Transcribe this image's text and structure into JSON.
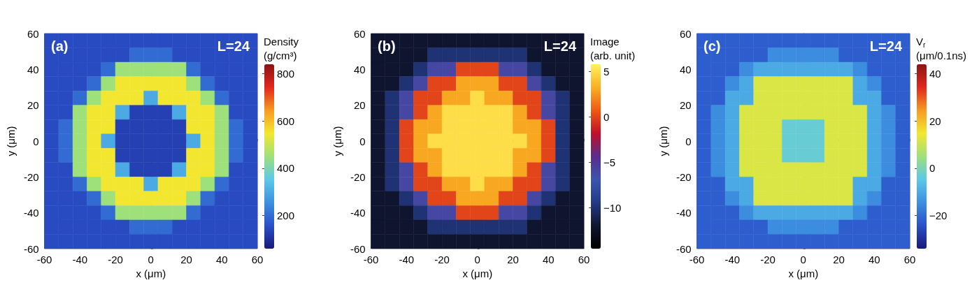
{
  "chart_data": [
    {
      "type": "heatmap",
      "xlabel": "x (μm)",
      "ylabel": "y (μm)",
      "clabel": "Density (g/cm³)",
      "annotations": [
        "(a)",
        "L=24"
      ],
      "x": [
        -56,
        -48,
        -40,
        -32,
        -24,
        -16,
        -8,
        0,
        8,
        16,
        24,
        32,
        40,
        48,
        56
      ],
      "y": [
        56,
        48,
        40,
        32,
        24,
        16,
        8,
        0,
        -8,
        -16,
        -24,
        -32,
        -40,
        -48,
        -56
      ],
      "xlim": [
        -60,
        60
      ],
      "xticks": [
        -60,
        -40,
        -20,
        0,
        20,
        40,
        60
      ],
      "ylim": [
        -60,
        60
      ],
      "yticks": [
        -60,
        -40,
        -20,
        0,
        20,
        40,
        60
      ],
      "clim": [
        60,
        840
      ],
      "cticks": [
        200,
        400,
        600,
        800
      ],
      "colors": [
        "#1a1a7a",
        "#2a4fc8",
        "#3d8fe0",
        "#5cc8e8",
        "#9ee07a",
        "#f2e830",
        "#f79a22",
        "#e0281e",
        "#8a1414"
      ],
      "cells": [
        [
          150,
          150,
          150,
          150,
          150,
          150,
          150,
          150,
          150,
          150,
          150,
          150,
          150,
          150,
          150
        ],
        [
          150,
          150,
          150,
          150,
          150,
          150,
          200,
          200,
          200,
          150,
          150,
          150,
          150,
          150,
          150
        ],
        [
          150,
          150,
          150,
          150,
          200,
          450,
          450,
          450,
          450,
          450,
          200,
          150,
          150,
          150,
          150
        ],
        [
          150,
          150,
          150,
          200,
          450,
          550,
          550,
          550,
          550,
          550,
          450,
          200,
          150,
          150,
          150
        ],
        [
          150,
          150,
          200,
          450,
          550,
          550,
          550,
          300,
          550,
          550,
          550,
          450,
          200,
          150,
          150
        ],
        [
          150,
          150,
          450,
          550,
          550,
          300,
          130,
          130,
          130,
          300,
          550,
          550,
          450,
          150,
          150
        ],
        [
          150,
          200,
          450,
          550,
          550,
          130,
          130,
          130,
          130,
          130,
          550,
          550,
          450,
          200,
          150
        ],
        [
          150,
          200,
          450,
          550,
          300,
          130,
          130,
          130,
          130,
          130,
          300,
          550,
          450,
          200,
          150
        ],
        [
          150,
          200,
          450,
          550,
          550,
          130,
          130,
          130,
          130,
          130,
          550,
          550,
          450,
          200,
          150
        ],
        [
          150,
          150,
          450,
          550,
          550,
          300,
          130,
          130,
          130,
          300,
          550,
          550,
          450,
          150,
          150
        ],
        [
          150,
          150,
          200,
          450,
          550,
          550,
          550,
          300,
          550,
          550,
          550,
          450,
          200,
          150,
          150
        ],
        [
          150,
          150,
          150,
          200,
          450,
          550,
          550,
          550,
          550,
          550,
          450,
          200,
          150,
          150,
          150
        ],
        [
          150,
          150,
          150,
          150,
          200,
          450,
          450,
          450,
          450,
          450,
          200,
          150,
          150,
          150,
          150
        ],
        [
          150,
          150,
          150,
          150,
          150,
          150,
          200,
          200,
          200,
          150,
          150,
          150,
          150,
          150,
          150
        ],
        [
          150,
          150,
          150,
          150,
          150,
          150,
          150,
          150,
          150,
          150,
          150,
          150,
          150,
          150,
          150
        ]
      ]
    },
    {
      "type": "heatmap",
      "xlabel": "x (μm)",
      "ylabel": "y (μm)",
      "clabel": "Image (arb. unit)",
      "annotations": [
        "(b)",
        "L=24"
      ],
      "x": [
        -56,
        -48,
        -40,
        -32,
        -24,
        -16,
        -8,
        0,
        8,
        16,
        24,
        32,
        40,
        48,
        56
      ],
      "y": [
        56,
        48,
        40,
        32,
        24,
        16,
        8,
        0,
        -8,
        -16,
        -24,
        -32,
        -40,
        -48,
        -56
      ],
      "xlim": [
        -60,
        60
      ],
      "xticks": [
        -60,
        -40,
        -20,
        0,
        20,
        40,
        60
      ],
      "ylim": [
        -60,
        60
      ],
      "yticks": [
        -60,
        -40,
        -20,
        0,
        20,
        40,
        60
      ],
      "clim": [
        -14.5,
        5.8
      ],
      "cticks": [
        {
          "value": 5,
          "label": "5"
        },
        0,
        {
          "value": -5,
          "label": "−5"
        },
        {
          "value": -10,
          "label": "−10"
        }
      ],
      "colors": [
        "#000000",
        "#101530",
        "#243a86",
        "#3b55b0",
        "#5a2c8c",
        "#c0102a",
        "#ee5a12",
        "#f9b022",
        "#fff25a"
      ],
      "cells": [
        [
          -12,
          -12,
          -12,
          -12,
          -12,
          -12,
          -12,
          -12,
          -12,
          -12,
          -12,
          -12,
          -12,
          -12,
          -12
        ],
        [
          -12,
          -12,
          -12,
          -12,
          -10,
          -10,
          -10,
          -10,
          -10,
          -10,
          -10,
          -12,
          -12,
          -12,
          -12
        ],
        [
          -12,
          -12,
          -12,
          -10,
          -6,
          -6,
          0,
          0,
          0,
          -6,
          -6,
          -10,
          -12,
          -12,
          -12
        ],
        [
          -12,
          -12,
          -10,
          -6,
          0,
          0,
          3,
          3,
          3,
          0,
          0,
          -6,
          -10,
          -12,
          -12
        ],
        [
          -12,
          -10,
          -6,
          0,
          0,
          3,
          3,
          5,
          3,
          3,
          0,
          0,
          -6,
          -10,
          -12
        ],
        [
          -12,
          -10,
          -6,
          0,
          3,
          5,
          5,
          5,
          5,
          5,
          3,
          0,
          -6,
          -10,
          -12
        ],
        [
          -12,
          -10,
          0,
          3,
          3,
          5,
          5,
          5,
          5,
          5,
          3,
          3,
          0,
          -10,
          -12
        ],
        [
          -12,
          -10,
          0,
          3,
          5,
          5,
          5,
          5,
          5,
          5,
          5,
          3,
          0,
          -10,
          -12
        ],
        [
          -12,
          -10,
          0,
          3,
          3,
          5,
          5,
          5,
          5,
          5,
          3,
          3,
          0,
          -10,
          -12
        ],
        [
          -12,
          -10,
          -6,
          0,
          3,
          5,
          5,
          5,
          5,
          5,
          3,
          0,
          -6,
          -10,
          -12
        ],
        [
          -12,
          -10,
          -6,
          0,
          0,
          3,
          3,
          5,
          3,
          3,
          0,
          0,
          -6,
          -10,
          -12
        ],
        [
          -12,
          -12,
          -10,
          -6,
          0,
          0,
          3,
          3,
          3,
          0,
          0,
          -6,
          -10,
          -12,
          -12
        ],
        [
          -12,
          -12,
          -12,
          -10,
          -6,
          -6,
          0,
          0,
          0,
          -6,
          -6,
          -10,
          -12,
          -12,
          -12
        ],
        [
          -12,
          -12,
          -12,
          -12,
          -10,
          -10,
          -10,
          -10,
          -10,
          -10,
          -10,
          -12,
          -12,
          -12,
          -12
        ],
        [
          -12,
          -12,
          -12,
          -12,
          -12,
          -12,
          -12,
          -12,
          -12,
          -12,
          -12,
          -12,
          -12,
          -12,
          -12
        ]
      ]
    },
    {
      "type": "heatmap",
      "xlabel": "x (μm)",
      "ylabel": "y (μm)",
      "clabel": "V$_{r}$ (μm/0.1ns)",
      "annotations": [
        "(c)",
        "L=24"
      ],
      "x": [
        -56,
        -48,
        -40,
        -32,
        -24,
        -16,
        -8,
        0,
        8,
        16,
        24,
        32,
        40,
        48,
        56
      ],
      "y": [
        56,
        48,
        40,
        32,
        24,
        16,
        8,
        0,
        -8,
        -16,
        -24,
        -32,
        -40,
        -48,
        -56
      ],
      "xlim": [
        -60,
        60
      ],
      "xticks": [
        -60,
        -40,
        -20,
        0,
        20,
        40,
        60
      ],
      "ylim": [
        -60,
        60
      ],
      "yticks": [
        -60,
        -40,
        -20,
        0,
        20,
        40,
        60
      ],
      "clim": [
        -34,
        44
      ],
      "cticks": [
        {
          "value": -20,
          "label": "−20"
        },
        0,
        20,
        40
      ],
      "colors": [
        "#1a1a7a",
        "#2a4fc8",
        "#3d8fe0",
        "#5cc8e8",
        "#9ee07a",
        "#f2e830",
        "#f79a22",
        "#e0281e",
        "#8a1414"
      ],
      "cells": [
        [
          -22,
          -22,
          -22,
          -22,
          -22,
          -22,
          -22,
          -22,
          -22,
          -22,
          -22,
          -22,
          -22,
          -22,
          -22
        ],
        [
          -22,
          -22,
          -22,
          -22,
          -22,
          -15,
          -15,
          -15,
          -15,
          -15,
          -22,
          -22,
          -22,
          -22,
          -22
        ],
        [
          -22,
          -22,
          -22,
          -15,
          -10,
          -10,
          -10,
          -10,
          -10,
          -10,
          -10,
          -15,
          -22,
          -22,
          -22
        ],
        [
          -22,
          -22,
          -15,
          -10,
          12,
          12,
          12,
          12,
          12,
          12,
          12,
          -10,
          -15,
          -22,
          -22
        ],
        [
          -22,
          -22,
          -10,
          -10,
          12,
          12,
          12,
          12,
          12,
          12,
          12,
          -10,
          -10,
          -22,
          -22
        ],
        [
          -22,
          -15,
          -10,
          12,
          12,
          12,
          12,
          12,
          12,
          12,
          12,
          12,
          -10,
          -15,
          -22
        ],
        [
          -22,
          -15,
          -10,
          12,
          12,
          12,
          -3,
          -3,
          -3,
          12,
          12,
          12,
          -10,
          -15,
          -22
        ],
        [
          -22,
          -15,
          -10,
          12,
          12,
          12,
          -3,
          -3,
          -3,
          12,
          12,
          12,
          -10,
          -15,
          -22
        ],
        [
          -22,
          -15,
          -10,
          12,
          12,
          12,
          -3,
          -3,
          -3,
          12,
          12,
          12,
          -10,
          -15,
          -22
        ],
        [
          -22,
          -15,
          -10,
          12,
          12,
          12,
          12,
          12,
          12,
          12,
          12,
          12,
          -10,
          -15,
          -22
        ],
        [
          -22,
          -22,
          -10,
          -10,
          12,
          12,
          12,
          12,
          12,
          12,
          12,
          -10,
          -10,
          -22,
          -22
        ],
        [
          -22,
          -22,
          -15,
          -10,
          12,
          12,
          12,
          12,
          12,
          12,
          12,
          -10,
          -15,
          -22,
          -22
        ],
        [
          -22,
          -22,
          -22,
          -15,
          -10,
          -10,
          -10,
          -10,
          -10,
          -10,
          -10,
          -15,
          -22,
          -22,
          -22
        ],
        [
          -22,
          -22,
          -22,
          -22,
          -22,
          -15,
          -15,
          -15,
          -15,
          -15,
          -22,
          -22,
          -22,
          -22,
          -22
        ],
        [
          -22,
          -22,
          -22,
          -22,
          -22,
          -22,
          -22,
          -22,
          -22,
          -22,
          -22,
          -22,
          -22,
          -22,
          -22
        ]
      ]
    }
  ]
}
